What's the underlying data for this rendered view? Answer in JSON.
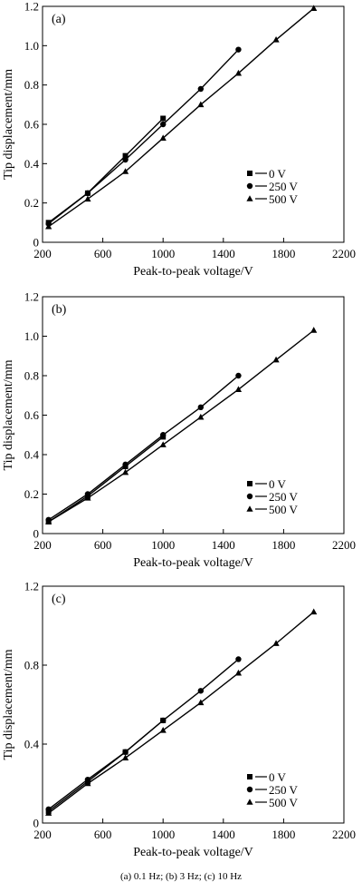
{
  "caption": "(a) 0.1 Hz;   (b) 3 Hz; (c) 10 Hz",
  "chart_data": [
    {
      "type": "line",
      "panel_label": "(a)",
      "xlabel": "Peak-to-peak voltage/V",
      "ylabel": "Tip displacement/mm",
      "xlim": [
        200,
        2200
      ],
      "ylim": [
        0,
        1.2
      ],
      "xticks": [
        "200",
        "600",
        "1000",
        "1400",
        "1800",
        "2200"
      ],
      "yticks": [
        "0",
        "0.2",
        "0.4",
        "0.6",
        "0.8",
        "1.0",
        "1.2"
      ],
      "legend_position": "right",
      "series": [
        {
          "name": "0 V",
          "marker": "square",
          "x": [
            240,
            500,
            750,
            1000
          ],
          "y": [
            0.1,
            0.25,
            0.44,
            0.63
          ]
        },
        {
          "name": "250 V",
          "marker": "circle",
          "x": [
            240,
            500,
            750,
            1000,
            1250,
            1500
          ],
          "y": [
            0.095,
            0.25,
            0.42,
            0.6,
            0.78,
            0.98
          ]
        },
        {
          "name": "500 V",
          "marker": "triangle",
          "x": [
            240,
            500,
            750,
            1000,
            1250,
            1500,
            1750,
            2000
          ],
          "y": [
            0.08,
            0.22,
            0.36,
            0.53,
            0.7,
            0.86,
            1.03,
            1.19
          ]
        }
      ]
    },
    {
      "type": "line",
      "panel_label": "(b)",
      "xlabel": "Peak-to-peak voltage/V",
      "ylabel": "Tip displacement/mm",
      "xlim": [
        200,
        2200
      ],
      "ylim": [
        0,
        1.2
      ],
      "xticks": [
        "200",
        "600",
        "1000",
        "1400",
        "1800",
        "2200"
      ],
      "yticks": [
        "0",
        "0.2",
        "0.4",
        "0.6",
        "0.8",
        "1.0",
        "1.2"
      ],
      "legend_position": "bottom-right",
      "series": [
        {
          "name": "0 V",
          "marker": "square",
          "x": [
            240,
            500,
            750,
            1000
          ],
          "y": [
            0.06,
            0.19,
            0.34,
            0.49
          ]
        },
        {
          "name": "250 V",
          "marker": "circle",
          "x": [
            240,
            500,
            750,
            1000,
            1250,
            1500
          ],
          "y": [
            0.07,
            0.2,
            0.35,
            0.5,
            0.64,
            0.8
          ]
        },
        {
          "name": "500 V",
          "marker": "triangle",
          "x": [
            240,
            500,
            750,
            1000,
            1250,
            1500,
            1750,
            2000
          ],
          "y": [
            0.06,
            0.18,
            0.31,
            0.45,
            0.59,
            0.73,
            0.88,
            1.03
          ]
        }
      ]
    },
    {
      "type": "line",
      "panel_label": "(c)",
      "xlabel": "Peak-to-peak voltage/V",
      "ylabel": "Tip displacement/mm",
      "xlim": [
        200,
        2200
      ],
      "ylim": [
        0,
        1.2
      ],
      "xticks": [
        "200",
        "600",
        "1000",
        "1400",
        "1800",
        "2200"
      ],
      "yticks": [
        "0",
        "0.4",
        "0.8",
        "1.2"
      ],
      "legend_position": "bottom-right",
      "series": [
        {
          "name": "0 V",
          "marker": "square",
          "x": [
            240,
            500,
            750,
            1000
          ],
          "y": [
            0.06,
            0.21,
            0.36,
            0.52
          ]
        },
        {
          "name": "250 V",
          "marker": "circle",
          "x": [
            240,
            500,
            750,
            1000,
            1250,
            1500
          ],
          "y": [
            0.07,
            0.22,
            0.36,
            0.52,
            0.67,
            0.83
          ]
        },
        {
          "name": "500 V",
          "marker": "triangle",
          "x": [
            240,
            500,
            750,
            1000,
            1250,
            1500,
            1750,
            2000
          ],
          "y": [
            0.05,
            0.2,
            0.33,
            0.47,
            0.61,
            0.76,
            0.91,
            1.07
          ]
        }
      ]
    }
  ]
}
